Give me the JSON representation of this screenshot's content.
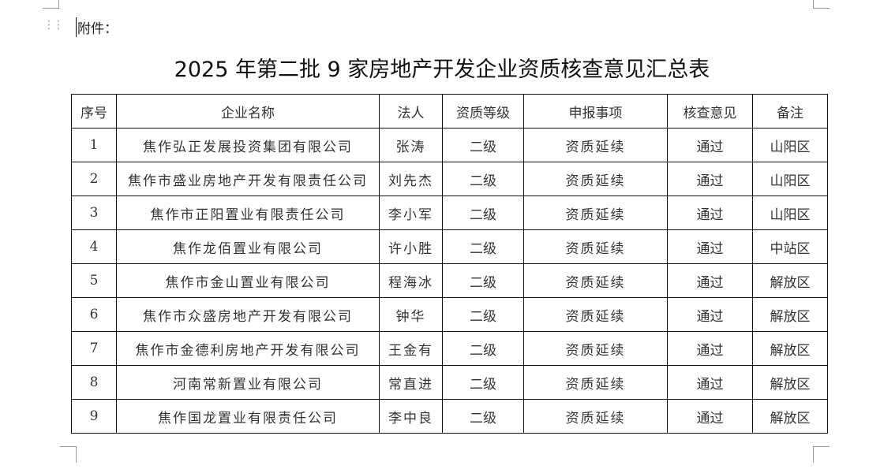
{
  "attachment_label": "附件：",
  "title": "2025 年第二批 9 家房地产开发企业资质核查意见汇总表",
  "table": {
    "headers": [
      "序号",
      "企业名称",
      "法人",
      "资质等级",
      "申报事项",
      "核查意见",
      "备注"
    ],
    "rows": [
      [
        "1",
        "焦作弘正发展投资集团有限公司",
        "张涛",
        "二级",
        "资质延续",
        "通过",
        "山阳区"
      ],
      [
        "2",
        "焦作市盛业房地产开发有限责任公司",
        "刘先杰",
        "二级",
        "资质延续",
        "通过",
        "山阳区"
      ],
      [
        "3",
        "焦作市正阳置业有限责任公司",
        "李小军",
        "二级",
        "资质延续",
        "通过",
        "山阳区"
      ],
      [
        "4",
        "焦作龙佰置业有限公司",
        "许小胜",
        "二级",
        "资质延续",
        "通过",
        "中站区"
      ],
      [
        "5",
        "焦作市金山置业有限公司",
        "程海冰",
        "二级",
        "资质延续",
        "通过",
        "解放区"
      ],
      [
        "6",
        "焦作市众盛房地产开发有限公司",
        "钟华",
        "二级",
        "资质延续",
        "通过",
        "解放区"
      ],
      [
        "7",
        "焦作市金德利房地产开发有限公司",
        "王金有",
        "二级",
        "资质延续",
        "通过",
        "解放区"
      ],
      [
        "8",
        "河南常新置业有限公司",
        "常直进",
        "二级",
        "资质延续",
        "通过",
        "解放区"
      ],
      [
        "9",
        "焦作国龙置业有限责任公司",
        "李中良",
        "二级",
        "资质延续",
        "通过",
        "解放区"
      ]
    ]
  }
}
